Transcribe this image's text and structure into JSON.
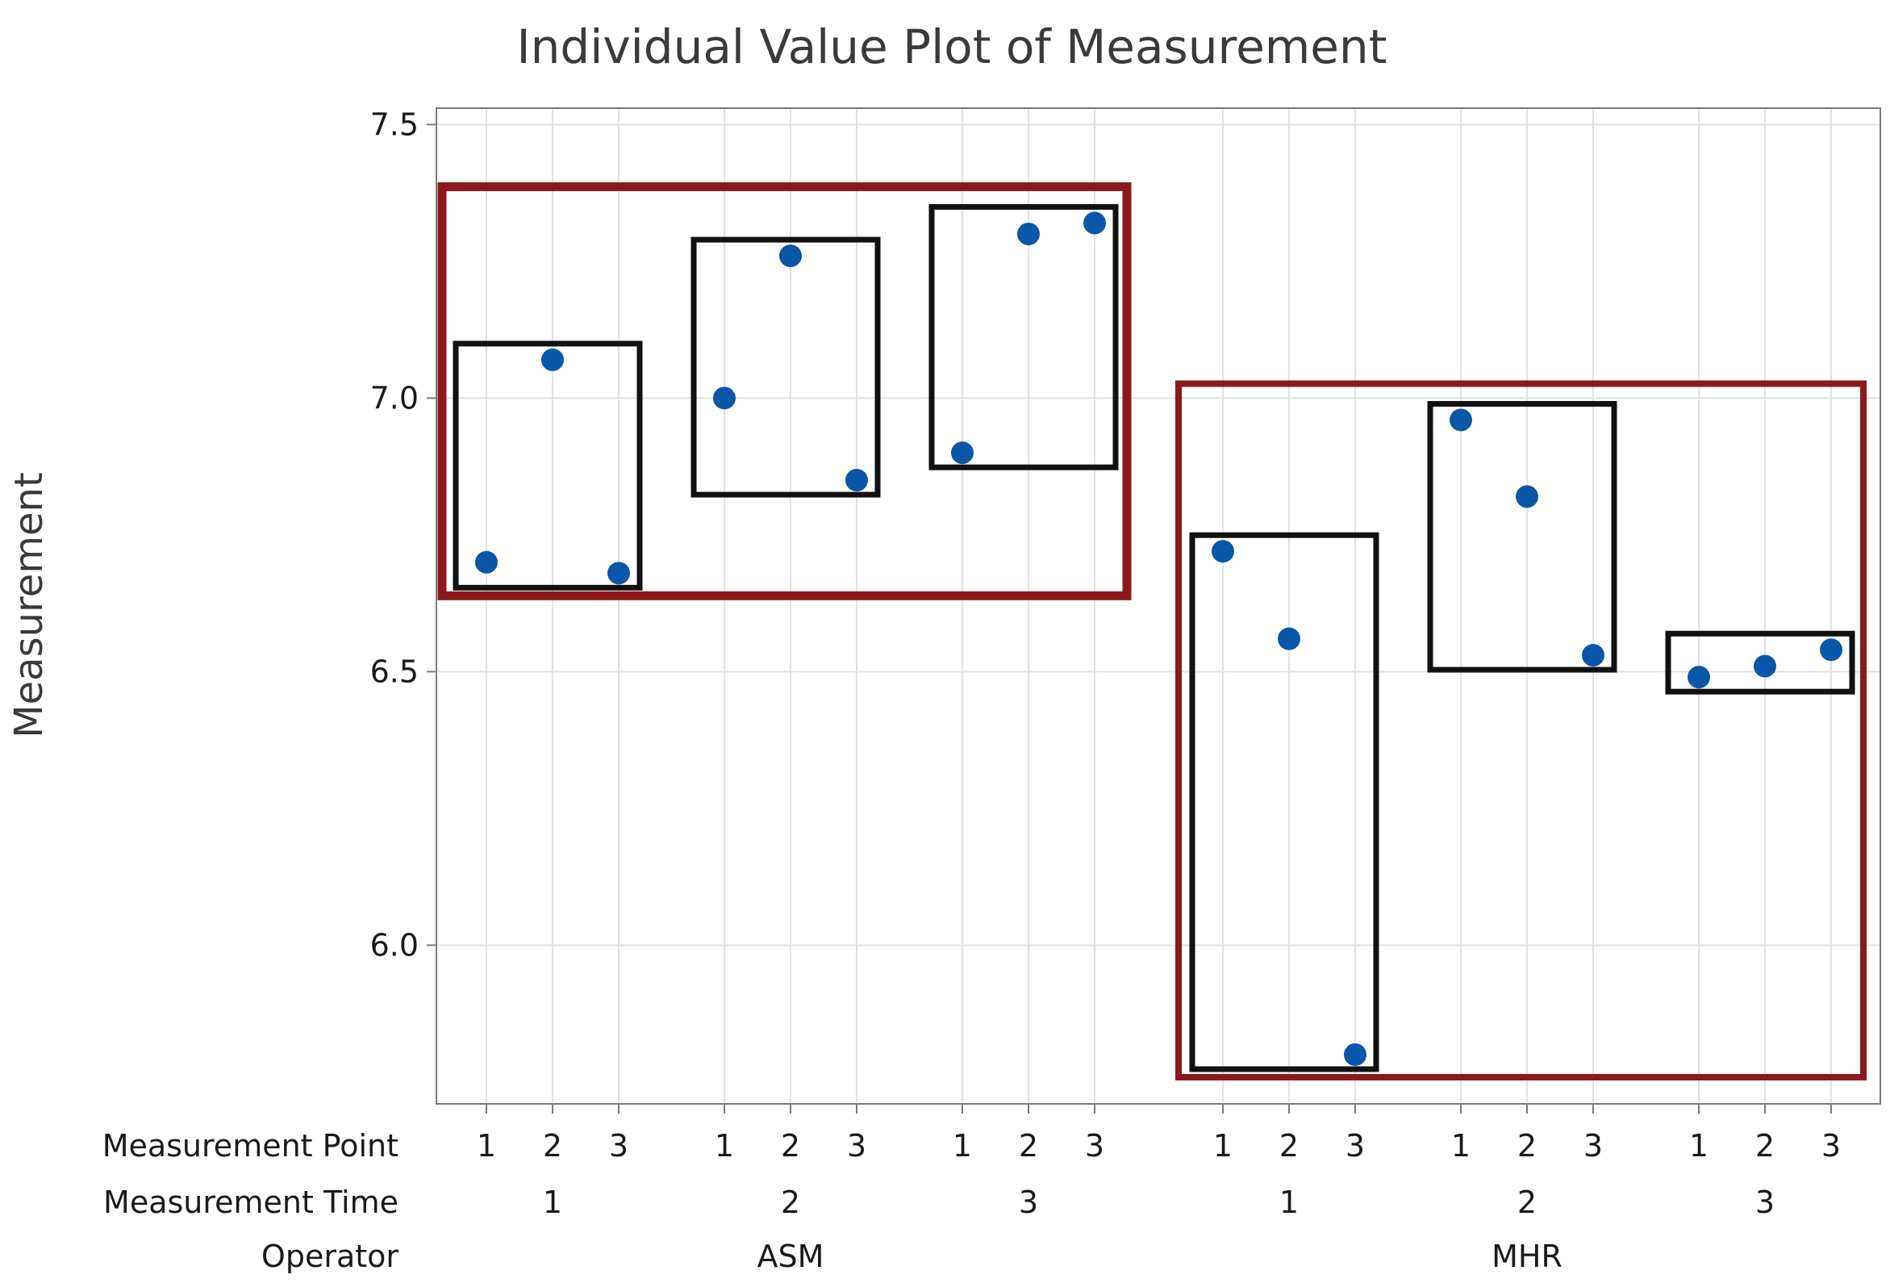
{
  "chart_data": {
    "type": "scatter",
    "subtype": "individual-value-plot",
    "title": "Individual Value Plot of Measurement",
    "ylabel": "Measurement",
    "ylim": [
      5.71,
      7.53
    ],
    "yticks": [
      "6.0",
      "6.5",
      "7.0",
      "7.5"
    ],
    "ytick_values": [
      6.0,
      6.5,
      7.0,
      7.5
    ],
    "grid": true,
    "x_levels": {
      "labels": [
        "Measurement Point",
        "Measurement Time",
        "Operator"
      ],
      "operators": [
        "ASM",
        "MHR"
      ],
      "times": [
        "1",
        "2",
        "3"
      ],
      "points": [
        "1",
        "2",
        "3"
      ]
    },
    "points": [
      {
        "operator": "ASM",
        "time": "1",
        "point": "1",
        "value": 6.7
      },
      {
        "operator": "ASM",
        "time": "1",
        "point": "2",
        "value": 7.07
      },
      {
        "operator": "ASM",
        "time": "1",
        "point": "3",
        "value": 6.68
      },
      {
        "operator": "ASM",
        "time": "2",
        "point": "1",
        "value": 7.0
      },
      {
        "operator": "ASM",
        "time": "2",
        "point": "2",
        "value": 7.26
      },
      {
        "operator": "ASM",
        "time": "2",
        "point": "3",
        "value": 6.85
      },
      {
        "operator": "ASM",
        "time": "3",
        "point": "1",
        "value": 6.9
      },
      {
        "operator": "ASM",
        "time": "3",
        "point": "2",
        "value": 7.3
      },
      {
        "operator": "ASM",
        "time": "3",
        "point": "3",
        "value": 7.32
      },
      {
        "operator": "MHR",
        "time": "1",
        "point": "1",
        "value": 6.72
      },
      {
        "operator": "MHR",
        "time": "1",
        "point": "2",
        "value": 6.56
      },
      {
        "operator": "MHR",
        "time": "1",
        "point": "3",
        "value": 5.8
      },
      {
        "operator": "MHR",
        "time": "2",
        "point": "1",
        "value": 6.96
      },
      {
        "operator": "MHR",
        "time": "2",
        "point": "2",
        "value": 6.82
      },
      {
        "operator": "MHR",
        "time": "2",
        "point": "3",
        "value": 6.53
      },
      {
        "operator": "MHR",
        "time": "3",
        "point": "1",
        "value": 6.49
      },
      {
        "operator": "MHR",
        "time": "3",
        "point": "2",
        "value": 6.51
      },
      {
        "operator": "MHR",
        "time": "3",
        "point": "3",
        "value": 6.54
      }
    ],
    "annotations": {
      "operator_box_color": "#8b1a1a",
      "time_box_color": "#111111"
    },
    "colors": {
      "point": "#0a56a8",
      "grid": "#e2e2e2",
      "axis": "#7a7a7a"
    }
  }
}
